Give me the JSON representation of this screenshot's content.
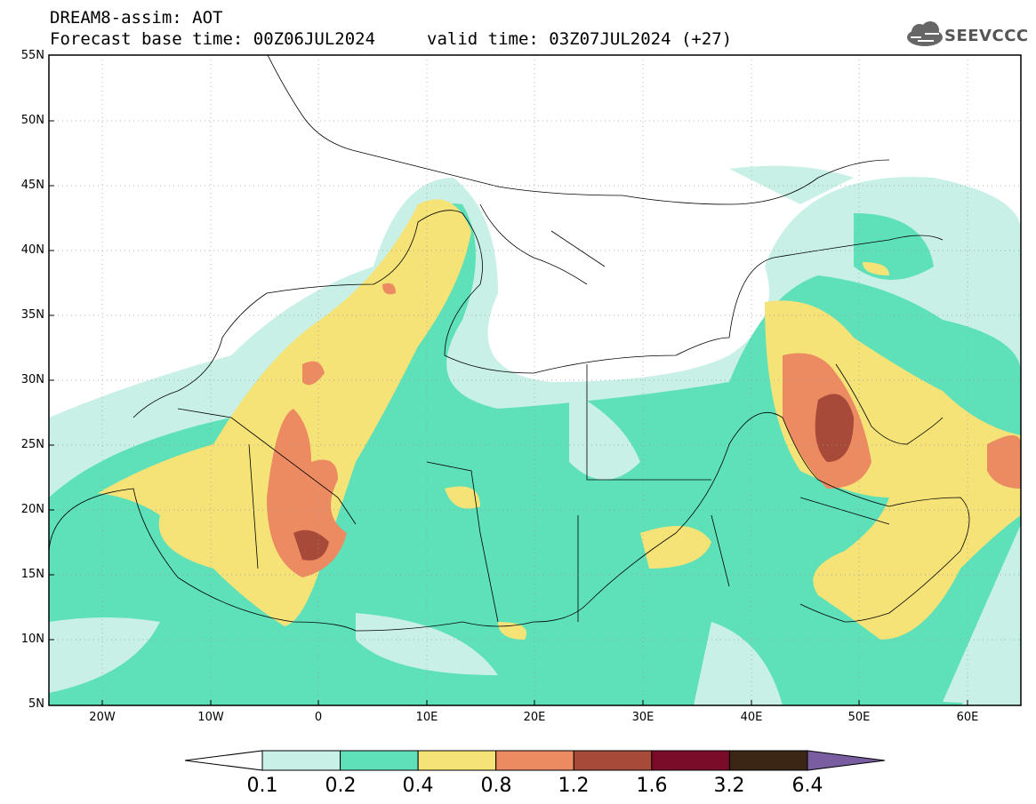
{
  "header": {
    "line1": "DREAM8-assim: AOT",
    "line2_base": "Forecast base time: 00Z06JUL2024",
    "line2_valid": "valid time: 03Z07JUL2024 (+27)"
  },
  "logo": {
    "text": "SEEVCCC",
    "icon": "cloud-icon"
  },
  "map": {
    "lat_labels": [
      "55N",
      "50N",
      "45N",
      "40N",
      "35N",
      "30N",
      "25N",
      "20N",
      "15N",
      "10N",
      "5N"
    ],
    "lon_labels": [
      "20W",
      "10W",
      "0",
      "10E",
      "20E",
      "30E",
      "40E",
      "50E",
      "60E"
    ]
  },
  "colorbar": {
    "labels": [
      "0.1",
      "0.2",
      "0.4",
      "0.8",
      "1.2",
      "1.6",
      "3.2",
      "6.4"
    ],
    "colors": [
      "#c8f0e6",
      "#5ee0b8",
      "#f5e378",
      "#ec8a62",
      "#a84a3a",
      "#7a0c2a",
      "#3b2616",
      "#7a5ca0"
    ]
  }
}
